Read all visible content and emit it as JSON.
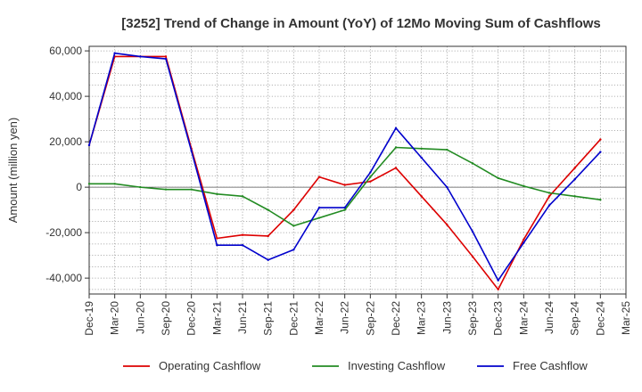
{
  "chart_data": {
    "type": "line",
    "title": "[3252]  Trend of Change in Amount (YoY) of 12Mo Moving Sum of Cashflows",
    "xlabel": "",
    "ylabel": "Amount (million yen)",
    "ylim": [
      -47000,
      62000
    ],
    "yticks": [
      -40000,
      -20000,
      0,
      20000,
      40000,
      60000
    ],
    "ytick_labels": [
      "-40,000",
      "-20,000",
      "0",
      "20,000",
      "40,000",
      "60,000"
    ],
    "categories": [
      "Dec-19",
      "Mar-20",
      "Jun-20",
      "Sep-20",
      "Dec-20",
      "Mar-21",
      "Jun-21",
      "Sep-21",
      "Dec-21",
      "Mar-22",
      "Jun-22",
      "Sep-22",
      "Dec-22",
      "Mar-23",
      "Jun-23",
      "Sep-23",
      "Dec-23",
      "Mar-24",
      "Jun-24",
      "Sep-24",
      "Dec-24",
      "Mar-25"
    ],
    "legend_position": "bottom",
    "grid": true,
    "series": [
      {
        "name": "Operating Cashflow",
        "color": "#dd0000",
        "values": [
          18500,
          57500,
          57500,
          57500,
          17000,
          -22500,
          -21000,
          -21500,
          -10000,
          4500,
          1000,
          2500,
          8500,
          -4000,
          -16500,
          -30500,
          -45000,
          -23000,
          -4000,
          8500,
          21000,
          null
        ]
      },
      {
        "name": "Investing Cashflow",
        "color": "#228b22",
        "values": [
          1500,
          1500,
          0,
          -1000,
          -1000,
          -3000,
          -4000,
          -10000,
          -17000,
          -13500,
          -10000,
          4500,
          17500,
          17000,
          16500,
          10500,
          4000,
          500,
          -2500,
          -4000,
          -5500,
          null
        ]
      },
      {
        "name": "Free Cashflow",
        "color": "#0000cc",
        "values": [
          18500,
          59000,
          57500,
          56500,
          16000,
          -25500,
          -25500,
          -32000,
          -27500,
          -9000,
          -9000,
          6500,
          26000,
          13000,
          0,
          -19500,
          -41000,
          -24500,
          -8000,
          3500,
          15500,
          null
        ]
      }
    ]
  }
}
